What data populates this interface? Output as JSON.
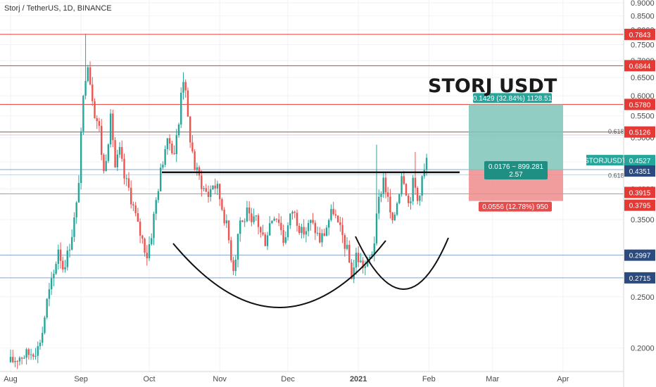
{
  "header": {
    "symbol_line": "Storj / TetherUS, 1D, BINANCE"
  },
  "annotation_title": "STORJ USDT",
  "colors": {
    "up": "#26a69a",
    "down": "#ef5350",
    "hline_red": "#e53935",
    "hline_blue": "#8aa4c8",
    "target_zone": "#7fc4b8",
    "stop_zone": "#ef8c8c",
    "price_tag_green": "#26a69a",
    "price_tag_red": "#e53935",
    "price_tag_blue": "#2a4a80"
  },
  "chart_data": {
    "type": "candlestick",
    "title": "Storj / TetherUS, 1D, BINANCE",
    "x_ticks": [
      "Aug",
      "Sep",
      "Oct",
      "Nov",
      "Dec",
      "2021",
      "Feb",
      "Mar",
      "Apr"
    ],
    "y_ticks": [
      "0.2000",
      "0.2500",
      "0.3000",
      "0.3500",
      "0.4000",
      "0.4500",
      "0.5000",
      "0.5500",
      "0.6000",
      "0.6500",
      "0.7000",
      "0.7500",
      "0.8000",
      "0.8500",
      "0.9000"
    ],
    "y_range": [
      0.185,
      0.9
    ],
    "y_scale": "log",
    "key_levels": {
      "red": [
        0.7843,
        0.6844,
        0.578,
        0.5126
      ],
      "blue": [
        0.4351,
        0.3915,
        0.2997,
        0.2715
      ]
    },
    "price_tags": [
      {
        "value": "0.7843",
        "kind": "red"
      },
      {
        "value": "0.6844",
        "kind": "red"
      },
      {
        "value": "0.5780",
        "kind": "red"
      },
      {
        "value": "0.5126",
        "kind": "red"
      },
      {
        "value": "0.4527",
        "kind": "green"
      },
      {
        "value": "0.4351",
        "kind": "blue"
      },
      {
        "value": "0.3915",
        "kind": "red"
      },
      {
        "value": "0.3795",
        "kind": "red"
      },
      {
        "value": "0.2997",
        "kind": "blue"
      },
      {
        "value": "0.2715",
        "kind": "blue"
      }
    ],
    "current_label": "STORJUSDT",
    "current_price": 0.4527,
    "fib_labels": [
      "0.618",
      "0.618"
    ],
    "neckline": 0.43,
    "position": {
      "target_text": "0.1429 (32.84%) 1128.51",
      "entry_text": "0.0176 ~ 899.281",
      "ratio_text": "2.57",
      "stop_text": "0.0556 (12.78%) 950",
      "entry": 0.4351,
      "target": 0.578,
      "stop": 0.3795
    },
    "candles": []
  }
}
